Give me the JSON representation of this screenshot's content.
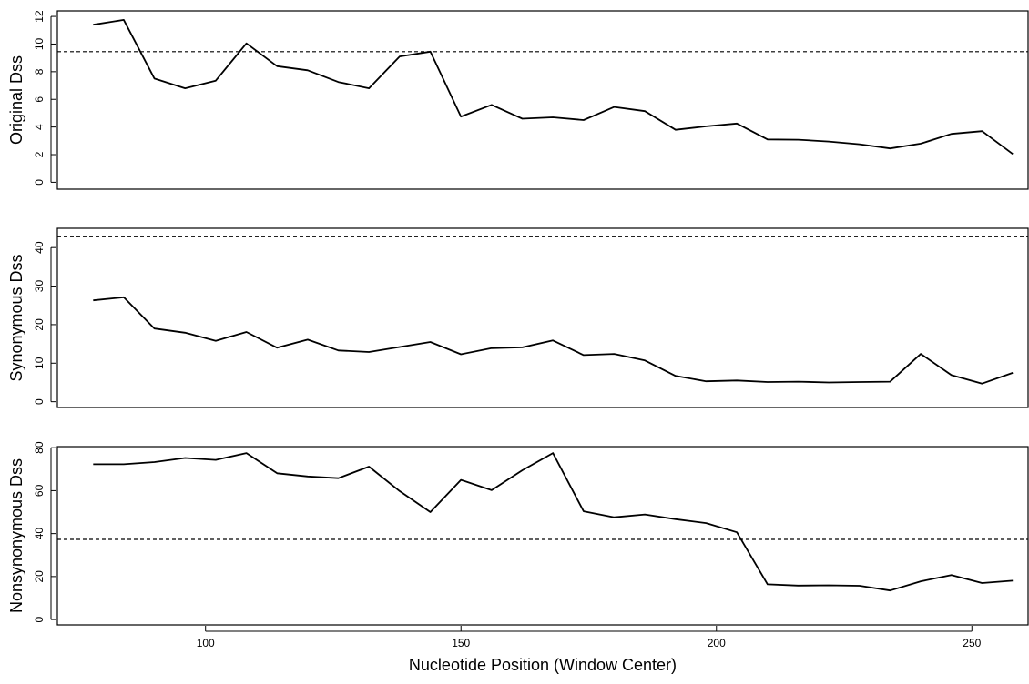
{
  "chart_data": [
    {
      "type": "line",
      "ylabel": "Original Dss",
      "xlabel": "",
      "xlim": [
        71,
        261
      ],
      "ylim": [
        -0.5,
        12.4
      ],
      "yticks": [
        0,
        2,
        4,
        6,
        8,
        10,
        12
      ],
      "yticklabels": [
        "0",
        "2",
        "4",
        "6",
        "8",
        "10",
        "12"
      ],
      "threshold": 9.45,
      "x": [
        78,
        84,
        90,
        96,
        102,
        108,
        114,
        120,
        126,
        132,
        138,
        144,
        150,
        156,
        162,
        168,
        174,
        180,
        186,
        192,
        198,
        204,
        210,
        216,
        222,
        228,
        234,
        240,
        246,
        252,
        258
      ],
      "y": [
        11.4,
        11.75,
        7.5,
        6.8,
        7.35,
        10.05,
        8.4,
        8.1,
        7.25,
        6.8,
        9.1,
        9.45,
        4.75,
        5.6,
        4.6,
        4.7,
        4.5,
        5.45,
        5.15,
        3.8,
        4.05,
        4.25,
        3.1,
        3.08,
        2.95,
        2.75,
        2.45,
        2.8,
        3.5,
        3.7,
        2.05
      ]
    },
    {
      "type": "line",
      "ylabel": "Synonymous Dss",
      "xlabel": "",
      "xlim": [
        71,
        261
      ],
      "ylim": [
        -1.5,
        45
      ],
      "yticks": [
        0,
        10,
        20,
        30,
        40
      ],
      "yticklabels": [
        "0",
        "10",
        "20",
        "30",
        "40"
      ],
      "threshold": 42.8,
      "x": [
        78,
        84,
        90,
        96,
        102,
        108,
        114,
        120,
        126,
        132,
        138,
        144,
        150,
        156,
        162,
        168,
        174,
        180,
        186,
        192,
        198,
        204,
        210,
        216,
        222,
        228,
        234,
        240,
        246,
        252,
        258
      ],
      "y": [
        26.3,
        27.1,
        19.0,
        17.9,
        15.8,
        18.1,
        14.0,
        16.1,
        13.3,
        12.9,
        14.2,
        15.5,
        12.3,
        13.9,
        14.1,
        15.9,
        12.1,
        12.4,
        10.7,
        6.7,
        5.3,
        5.5,
        5.1,
        5.2,
        5.0,
        5.1,
        5.2,
        12.4,
        6.9,
        4.7,
        7.5
      ]
    },
    {
      "type": "line",
      "ylabel": "Nonsynonymous Dss",
      "xlabel": "Nucleotide Position (Window Center)",
      "xlim": [
        71,
        261
      ],
      "ylim": [
        -2.5,
        80.5
      ],
      "yticks": [
        0,
        20,
        40,
        60,
        80
      ],
      "yticklabels": [
        "0",
        "20",
        "40",
        "60",
        "80"
      ],
      "xticks": [
        100,
        150,
        200,
        250
      ],
      "xticklabels": [
        "100",
        "150",
        "200",
        "250"
      ],
      "threshold": 37.3,
      "x": [
        78,
        84,
        90,
        96,
        102,
        108,
        114,
        120,
        126,
        132,
        138,
        144,
        150,
        156,
        162,
        168,
        174,
        180,
        186,
        192,
        198,
        204,
        210,
        216,
        222,
        228,
        234,
        240,
        246,
        252,
        258
      ],
      "y": [
        72.3,
        72.3,
        73.3,
        75.2,
        74.3,
        77.5,
        68.1,
        66.6,
        65.8,
        71.2,
        59.8,
        50.0,
        65.0,
        60.2,
        69.5,
        77.5,
        50.4,
        47.6,
        48.9,
        46.7,
        44.9,
        40.6,
        16.4,
        15.8,
        15.9,
        15.7,
        13.5,
        17.8,
        20.7,
        17.0,
        18.1
      ]
    }
  ]
}
